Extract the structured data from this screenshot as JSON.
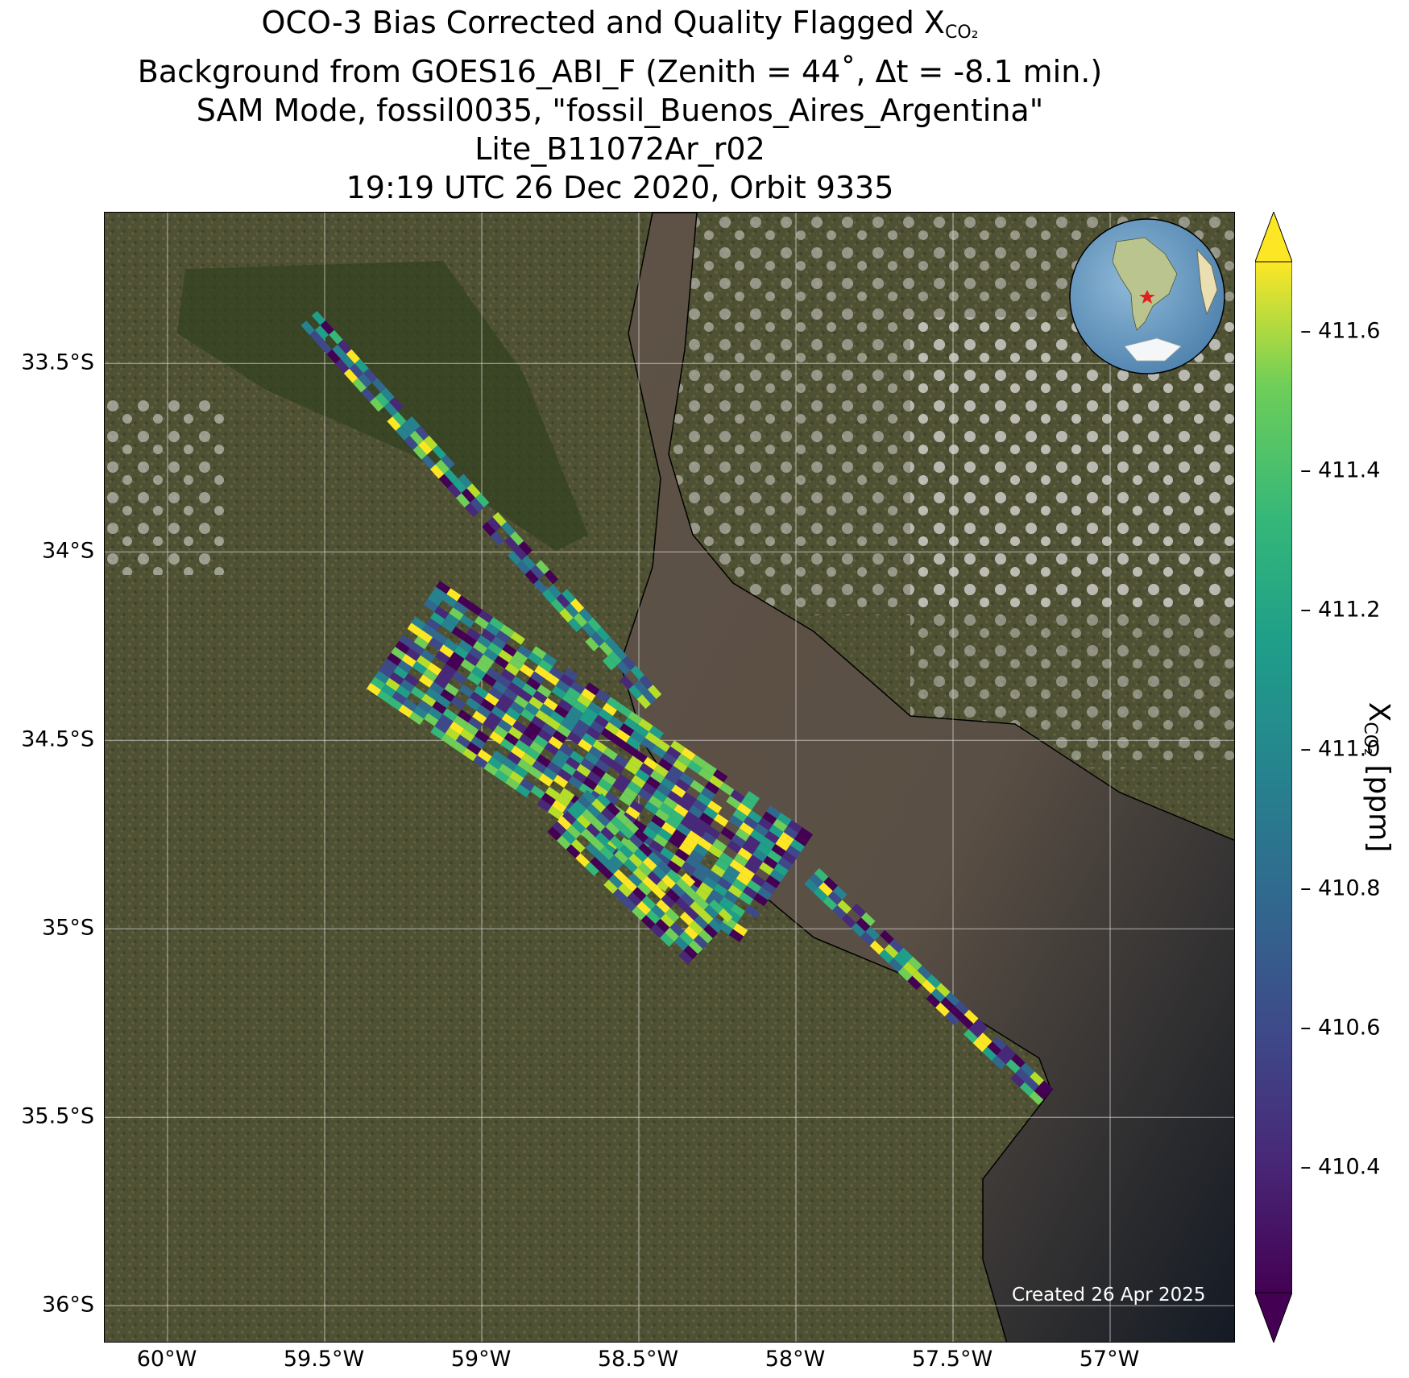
{
  "title": {
    "line1_prefix": "OCO-3 Bias Corrected and Quality Flagged X",
    "line1_sub": "CO₂",
    "line2": "Background from GOES16_ABI_F (Zenith = 44˚, Δt = -8.1 min.)",
    "line3": "SAM Mode, fossil0035, \"fossil_Buenos_Aires_Argentina\"",
    "line4": "Lite_B11072Ar_r02",
    "line5": "19:19 UTC 26 Dec 2020, Orbit 9335"
  },
  "map": {
    "lon_range": [
      -60.2,
      -56.6
    ],
    "lat_range": [
      -36.1,
      -33.1
    ],
    "lon_ticks": [
      {
        "value": -60.0,
        "label": "60°W"
      },
      {
        "value": -59.5,
        "label": "59.5°W"
      },
      {
        "value": -59.0,
        "label": "59°W"
      },
      {
        "value": -58.5,
        "label": "58.5°W"
      },
      {
        "value": -58.0,
        "label": "58°W"
      },
      {
        "value": -57.5,
        "label": "57.5°W"
      },
      {
        "value": -57.0,
        "label": "57°W"
      }
    ],
    "lat_ticks": [
      {
        "value": -33.5,
        "label": "33.5°S"
      },
      {
        "value": -34.0,
        "label": "34°S"
      },
      {
        "value": -34.5,
        "label": "34.5°S"
      },
      {
        "value": -35.0,
        "label": "35°S"
      },
      {
        "value": -35.5,
        "label": "35.5°S"
      },
      {
        "value": -36.0,
        "label": "36°S"
      }
    ],
    "gridlines": true,
    "colors": {
      "land": "#4d4f32",
      "water": "#5e5247",
      "deep_ocean": "#1a2230",
      "coastline": "#000000",
      "grid": "#d8d8d8"
    },
    "target_marker": {
      "lon": -58.4,
      "lat": -34.6,
      "color": "#e02020"
    },
    "created": "Created 26 Apr 2025"
  },
  "chart_data": {
    "type": "heatmap",
    "colormap": "viridis",
    "swaths": [
      {
        "start": [
          -59.55,
          -33.38
        ],
        "end": [
          -58.45,
          -34.4
        ],
        "width_deg": 0.09
      },
      {
        "start": [
          -59.25,
          -34.22
        ],
        "end": [
          -58.05,
          -34.9
        ],
        "width_deg": 0.42
      },
      {
        "start": [
          -58.72,
          -34.68
        ],
        "end": [
          -58.25,
          -35.05
        ],
        "width_deg": 0.22
      },
      {
        "start": [
          -57.95,
          -34.86
        ],
        "end": [
          -57.2,
          -35.45
        ],
        "width_deg": 0.09
      }
    ]
  },
  "colorbar": {
    "label_prefix": "X",
    "label_sub": "CO₂",
    "label_suffix": " [ppm]",
    "vmin": 410.22,
    "vmax": 411.7,
    "extend": "both",
    "ticks": [
      "410.4",
      "410.6",
      "410.8",
      "411.0",
      "411.2",
      "411.4",
      "411.6"
    ]
  }
}
